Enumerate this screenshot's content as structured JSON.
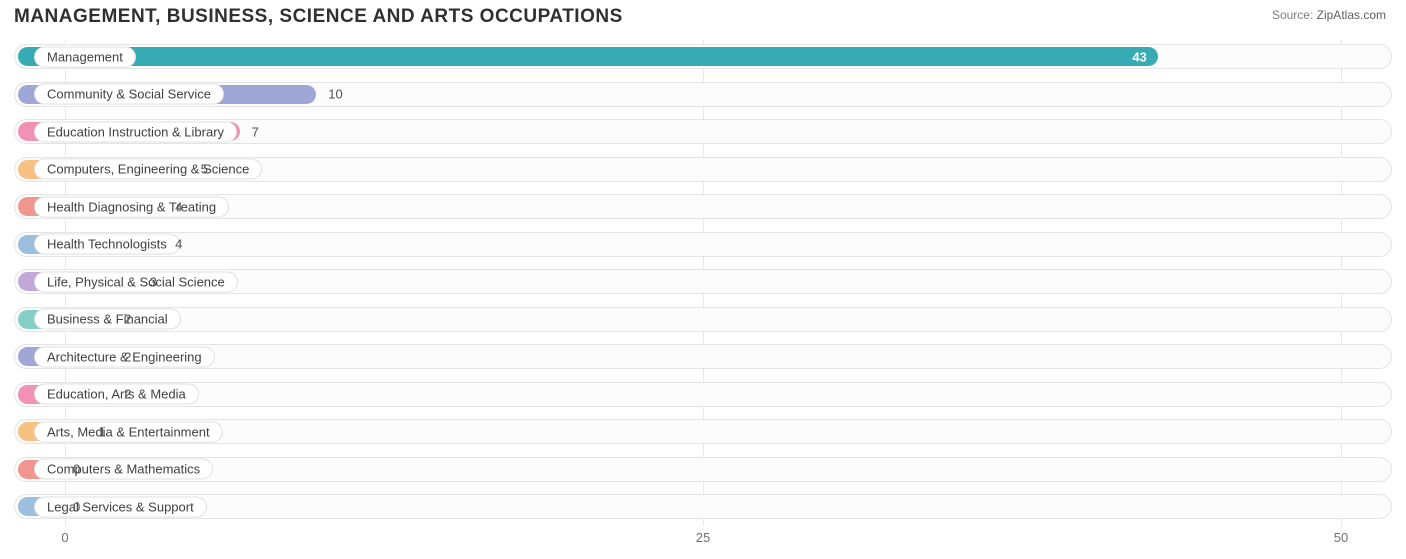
{
  "title": "MANAGEMENT, BUSINESS, SCIENCE AND ARTS OCCUPATIONS",
  "source_label": "Source:",
  "source_site": "ZipAtlas.com",
  "chart": {
    "type": "bar",
    "orientation": "horizontal",
    "x_min": -2,
    "x_max": 52,
    "ticks": [
      0,
      25,
      50
    ],
    "grid_color": "#e8e8e8",
    "track_bg": "#fcfcfc",
    "track_border": "#e4e4e4",
    "pill_bg": "#ffffff",
    "pill_border": "#e0e0e0",
    "background": "#ffffff",
    "label_fontsize": 13,
    "title_fontsize": 19,
    "bars": [
      {
        "label": "Management",
        "value": 43,
        "color": "#37abb4",
        "value_inside": true
      },
      {
        "label": "Community & Social Service",
        "value": 10,
        "color": "#9fa7d6"
      },
      {
        "label": "Education Instruction & Library",
        "value": 7,
        "color": "#f191b4"
      },
      {
        "label": "Computers, Engineering & Science",
        "value": 5,
        "color": "#f8c183"
      },
      {
        "label": "Health Diagnosing & Treating",
        "value": 4,
        "color": "#f0968f"
      },
      {
        "label": "Health Technologists",
        "value": 4,
        "color": "#9cbedf"
      },
      {
        "label": "Life, Physical & Social Science",
        "value": 3,
        "color": "#c0a9d8"
      },
      {
        "label": "Business & Financial",
        "value": 2,
        "color": "#85d0c5"
      },
      {
        "label": "Architecture & Engineering",
        "value": 2,
        "color": "#9fa7d6"
      },
      {
        "label": "Education, Arts & Media",
        "value": 2,
        "color": "#f191b4"
      },
      {
        "label": "Arts, Media & Entertainment",
        "value": 1,
        "color": "#f8c183"
      },
      {
        "label": "Computers & Mathematics",
        "value": 0,
        "color": "#f0968f"
      },
      {
        "label": "Legal Services & Support",
        "value": 0,
        "color": "#9cbedf"
      }
    ]
  }
}
